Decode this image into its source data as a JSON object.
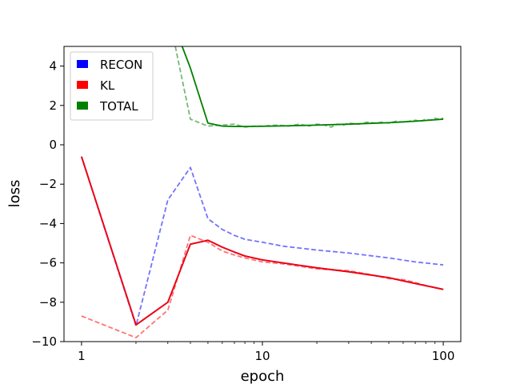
{
  "chart_data": {
    "type": "line",
    "title": "",
    "xlabel": "epoch",
    "ylabel": "loss",
    "xscale": "log",
    "xlim": [
      0.8,
      125
    ],
    "ylim": [
      -10,
      5
    ],
    "x_ticks": [
      1,
      10,
      100
    ],
    "x_tick_labels": [
      "1",
      "10",
      "100"
    ],
    "y_ticks": [
      -10,
      -8,
      -6,
      -4,
      -2,
      0,
      2,
      4
    ],
    "y_tick_labels": [
      "−10",
      "−8",
      "−6",
      "−4",
      "−2",
      "0",
      "2",
      "4"
    ],
    "grid": false,
    "legend": {
      "placement": "top-left",
      "entries": [
        {
          "label": "RECON",
          "color": "#0000ff"
        },
        {
          "label": "KL",
          "color": "#ff0000"
        },
        {
          "label": "TOTAL",
          "color": "#008000"
        }
      ]
    },
    "series": [
      {
        "key": "recon_val",
        "color": "#0000ff",
        "style": "dashed",
        "opacity": 0.55,
        "x": [
          1,
          2,
          3,
          4,
          5,
          6,
          7,
          8,
          10,
          13,
          20,
          30,
          50,
          70,
          100
        ],
        "y": [
          -0.6,
          -9.2,
          -2.8,
          -1.15,
          -3.75,
          -4.3,
          -4.6,
          -4.8,
          -4.95,
          -5.15,
          -5.35,
          -5.5,
          -5.75,
          -5.95,
          -6.1
        ]
      },
      {
        "key": "kl_val",
        "color": "#ff0000",
        "style": "dashed",
        "opacity": 0.55,
        "x": [
          1,
          2,
          3,
          4,
          5,
          6,
          7,
          8,
          10,
          13,
          20,
          30,
          40,
          50,
          60,
          70,
          80,
          90,
          100
        ],
        "y": [
          -8.7,
          -9.8,
          -8.4,
          -4.6,
          -4.95,
          -5.4,
          -5.6,
          -5.75,
          -5.95,
          -6.05,
          -6.3,
          -6.4,
          -6.6,
          -6.8,
          -6.85,
          -7.0,
          -7.15,
          -7.25,
          -7.35
        ]
      },
      {
        "key": "total_val",
        "color": "#008000",
        "style": "dashed",
        "opacity": 0.55,
        "x": [
          3.3,
          4,
          5,
          6,
          7,
          8,
          9,
          10,
          12,
          14,
          16,
          18,
          20,
          22,
          24,
          26,
          28,
          30,
          34,
          38,
          42,
          46,
          50,
          55,
          60,
          65,
          70,
          75,
          80,
          85,
          90,
          95,
          100
        ],
        "y": [
          5.0,
          1.3,
          0.95,
          1.0,
          1.05,
          0.9,
          0.95,
          0.95,
          1.0,
          0.95,
          1.05,
          0.95,
          1.05,
          1.0,
          0.9,
          1.05,
          1.0,
          1.1,
          1.05,
          1.15,
          1.1,
          1.15,
          1.1,
          1.2,
          1.15,
          1.2,
          1.25,
          1.2,
          1.3,
          1.25,
          1.35,
          1.3,
          1.35
        ]
      },
      {
        "key": "recon_train",
        "color": "#0000ff",
        "style": "solid",
        "opacity": 1,
        "x": [
          1,
          2,
          3,
          4,
          5,
          6,
          7,
          8,
          10,
          13,
          20,
          30,
          50,
          70,
          100
        ],
        "y": [
          -0.6,
          -9.15,
          -8.0,
          -5.05,
          -4.85,
          -5.2,
          -5.45,
          -5.65,
          -5.85,
          -6.0,
          -6.25,
          -6.45,
          -6.75,
          -7.05,
          -7.35
        ]
      },
      {
        "key": "kl_train",
        "color": "#ff0000",
        "style": "solid",
        "opacity": 1,
        "x": [
          1,
          2,
          3,
          4,
          5,
          6,
          7,
          8,
          10,
          13,
          20,
          30,
          50,
          70,
          100
        ],
        "y": [
          -0.6,
          -9.15,
          -8.0,
          -5.05,
          -4.85,
          -5.2,
          -5.45,
          -5.65,
          -5.85,
          -6.0,
          -6.25,
          -6.45,
          -6.75,
          -7.05,
          -7.35
        ]
      },
      {
        "key": "total_train",
        "color": "#008000",
        "style": "solid",
        "opacity": 1,
        "x": [
          3.6,
          4,
          5,
          6,
          7,
          8,
          10,
          13,
          20,
          30,
          50,
          70,
          100
        ],
        "y": [
          5.0,
          3.9,
          1.1,
          0.95,
          0.93,
          0.93,
          0.94,
          0.96,
          1.0,
          1.05,
          1.12,
          1.2,
          1.3
        ]
      }
    ]
  }
}
